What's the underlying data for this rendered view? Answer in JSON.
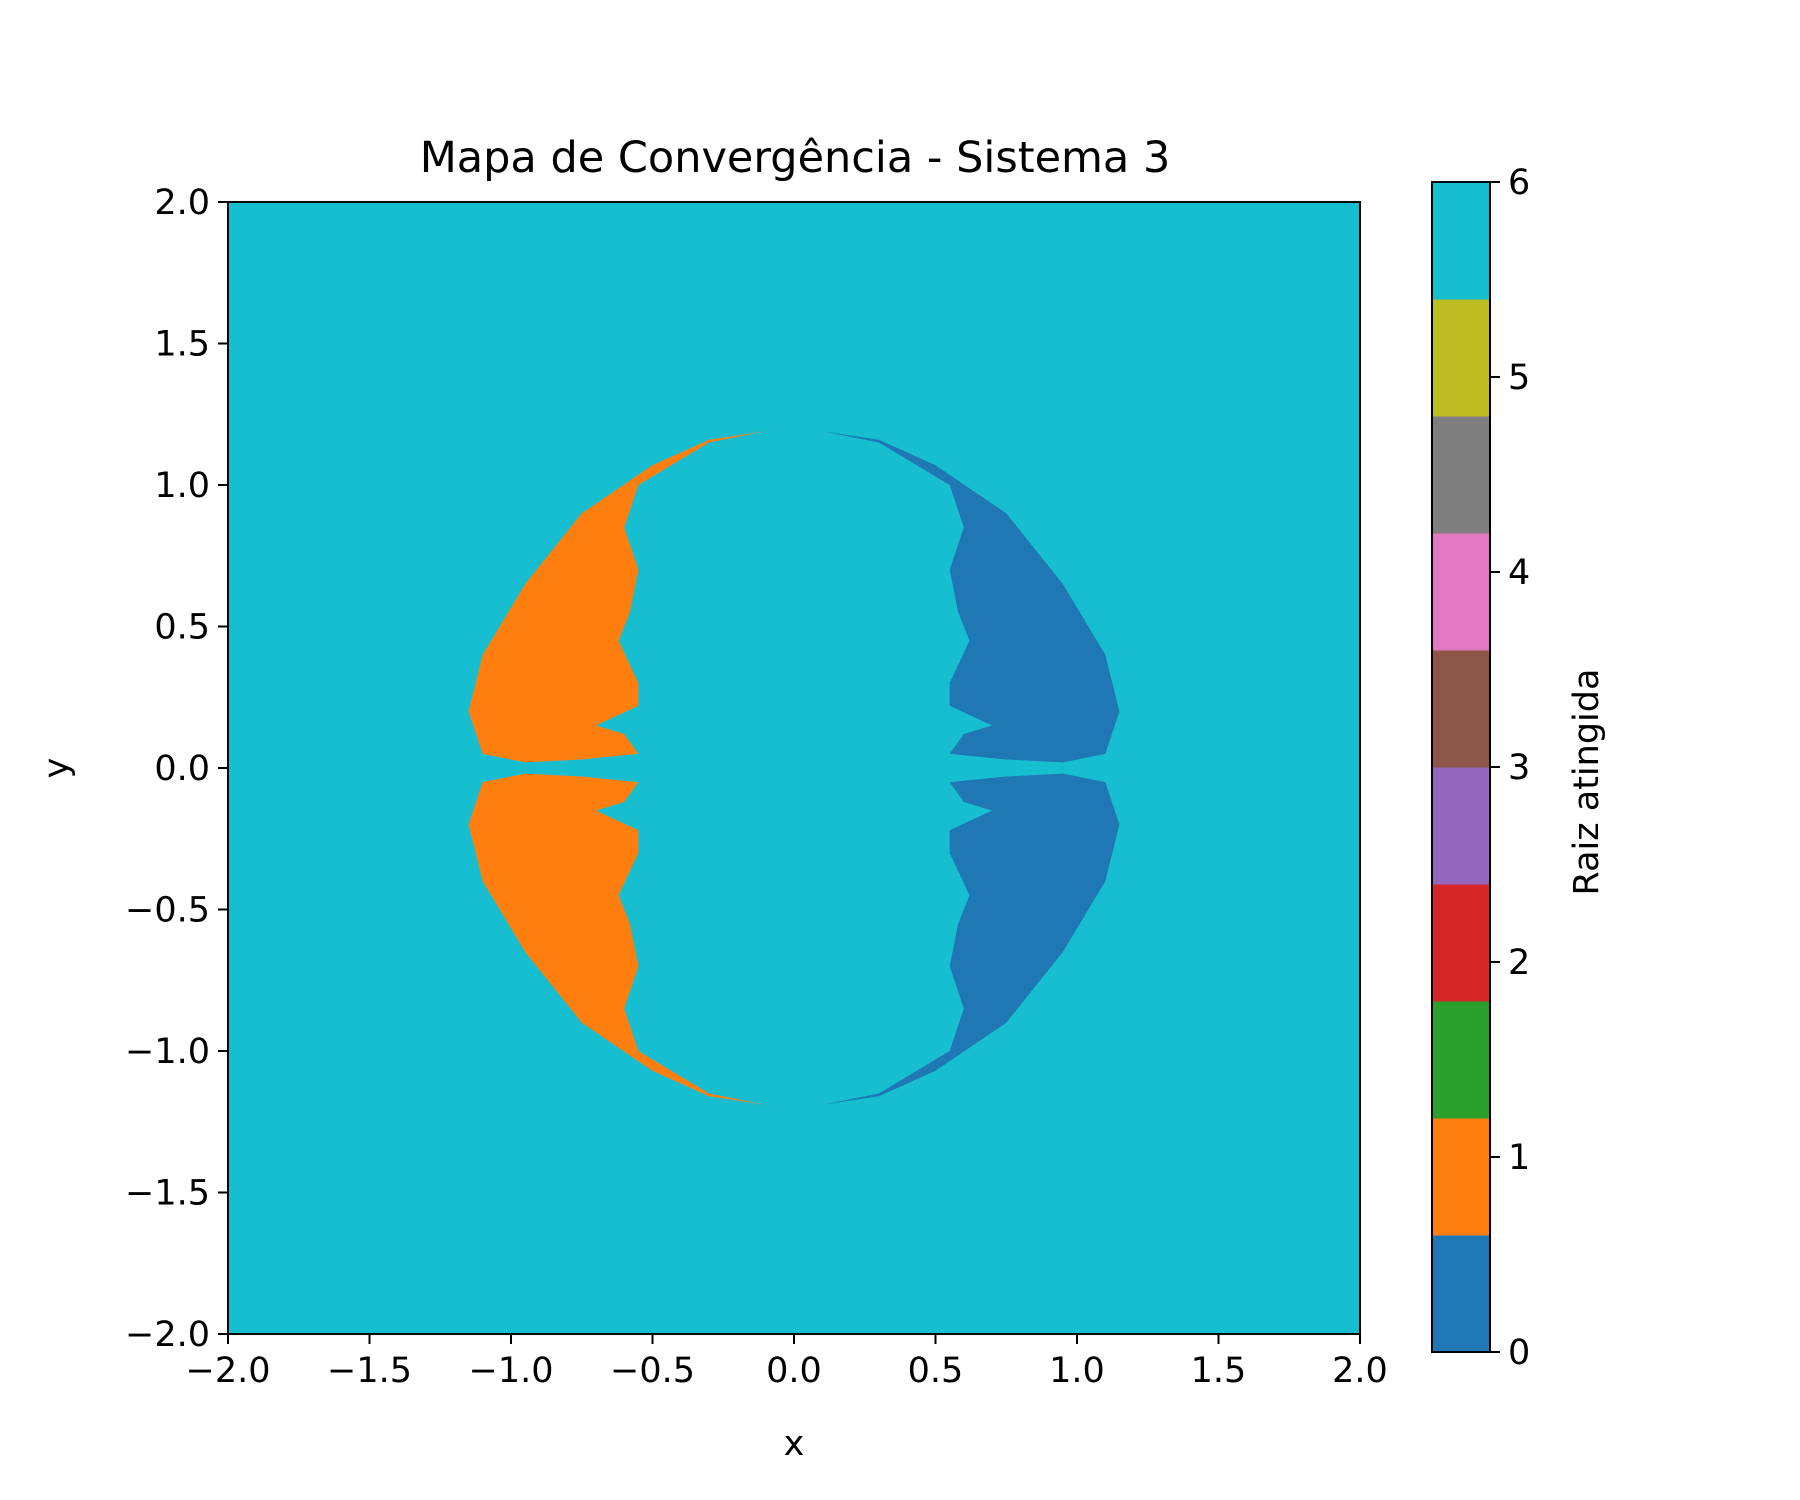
{
  "chart_data": {
    "type": "heatmap",
    "title": "Mapa de Convergência - Sistema 3",
    "xlabel": "x",
    "ylabel": "y",
    "xlim": [
      -2.0,
      2.0
    ],
    "ylim": [
      -2.0,
      2.0
    ],
    "x_ticks": [
      "−2.0",
      "−1.5",
      "−1.0",
      "−0.5",
      "0.0",
      "0.5",
      "1.0",
      "1.5",
      "2.0"
    ],
    "y_ticks": [
      "−2.0",
      "−1.5",
      "−1.0",
      "−0.5",
      "0.0",
      "0.5",
      "1.0",
      "1.5",
      "2.0"
    ],
    "x_tick_values": [
      -2.0,
      -1.5,
      -1.0,
      -0.5,
      0.0,
      0.5,
      1.0,
      1.5,
      2.0
    ],
    "y_tick_values": [
      -2.0,
      -1.5,
      -1.0,
      -0.5,
      0.0,
      0.5,
      1.0,
      1.5,
      2.0
    ],
    "background_root": 6,
    "regions": [
      {
        "root": 1,
        "color": "#ff7f0e",
        "description_points": [
          [
            -0.1,
            1.19
          ],
          [
            -0.3,
            1.16
          ],
          [
            -0.5,
            1.07
          ],
          [
            -0.75,
            0.9
          ],
          [
            -0.95,
            0.65
          ],
          [
            -1.1,
            0.4
          ],
          [
            -1.15,
            0.2
          ],
          [
            -1.1,
            0.05
          ],
          [
            -0.95,
            0.02
          ],
          [
            -0.75,
            0.03
          ],
          [
            -0.55,
            0.05
          ],
          [
            -0.6,
            0.12
          ],
          [
            -0.7,
            0.15
          ],
          [
            -0.55,
            0.22
          ],
          [
            -0.55,
            0.3
          ],
          [
            -0.62,
            0.45
          ],
          [
            -0.58,
            0.55
          ],
          [
            -0.55,
            0.7
          ],
          [
            -0.6,
            0.85
          ],
          [
            -0.55,
            1.0
          ],
          [
            -0.3,
            1.15
          ]
        ],
        "mirrored_y": true
      },
      {
        "root": 0,
        "color": "#1f77b4",
        "description_points": [
          [
            0.1,
            1.19
          ],
          [
            0.3,
            1.16
          ],
          [
            0.5,
            1.07
          ],
          [
            0.75,
            0.9
          ],
          [
            0.95,
            0.65
          ],
          [
            1.1,
            0.4
          ],
          [
            1.15,
            0.2
          ],
          [
            1.1,
            0.05
          ],
          [
            0.95,
            0.02
          ],
          [
            0.75,
            0.03
          ],
          [
            0.55,
            0.05
          ],
          [
            0.6,
            0.12
          ],
          [
            0.7,
            0.15
          ],
          [
            0.55,
            0.22
          ],
          [
            0.55,
            0.3
          ],
          [
            0.62,
            0.45
          ],
          [
            0.58,
            0.55
          ],
          [
            0.55,
            0.7
          ],
          [
            0.6,
            0.85
          ],
          [
            0.55,
            1.0
          ],
          [
            0.3,
            1.15
          ]
        ],
        "mirrored_y": true
      }
    ],
    "colorbar": {
      "label": "Raiz atingida",
      "range": [
        0,
        6
      ],
      "ticks": [
        "0",
        "1",
        "2",
        "3",
        "4",
        "5",
        "6"
      ],
      "tick_values": [
        0,
        1,
        2,
        3,
        4,
        5,
        6
      ],
      "colors": [
        "#1f77b4",
        "#ff7f0e",
        "#2ca02c",
        "#d62728",
        "#9467bd",
        "#8c564b",
        "#e377c2",
        "#7f7f7f",
        "#bcbd22",
        "#17becf"
      ]
    }
  }
}
